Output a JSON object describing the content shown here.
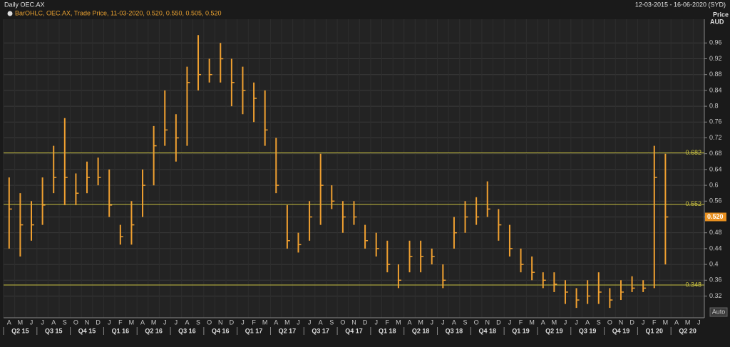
{
  "chart_data": {
    "type": "ohlc",
    "title": "Daily OEC.AX",
    "date_range": "12-03-2015 - 16-06-2020 (SYD)",
    "legend_text": "BarOHLC, OEC.AX, Trade Price, 11-03-2020, 0.520, 0.550, 0.505, 0.520",
    "y_axis_title": [
      "Price",
      "AUD"
    ],
    "button": "Auto",
    "color": "#f0a030",
    "categories": [
      "A",
      "M",
      "J",
      "J",
      "A",
      "S",
      "O",
      "N",
      "D",
      "J",
      "F",
      "M",
      "A",
      "M",
      "J",
      "J",
      "A",
      "S",
      "O",
      "N",
      "D",
      "J",
      "F",
      "M",
      "A",
      "M",
      "J",
      "J",
      "A",
      "S",
      "O",
      "N",
      "D",
      "J",
      "F",
      "M",
      "A",
      "M",
      "J",
      "J",
      "A",
      "S",
      "O",
      "N",
      "D",
      "J",
      "F",
      "M",
      "A",
      "M",
      "J",
      "J",
      "A",
      "S",
      "O",
      "N",
      "D",
      "J",
      "F",
      "M",
      "A",
      "M",
      "J"
    ],
    "quarters": [
      "Q2 15",
      "Q3 15",
      "Q4 15",
      "Q1 16",
      "Q2 16",
      "Q3 16",
      "Q4 16",
      "Q1 17",
      "Q2 17",
      "Q3 17",
      "Q4 17",
      "Q1 18",
      "Q2 18",
      "Q3 18",
      "Q4 18",
      "Q1 19",
      "Q2 19",
      "Q3 19",
      "Q4 19",
      "Q1 20",
      "Q2 20"
    ],
    "high": [
      0.62,
      0.58,
      0.56,
      0.62,
      0.7,
      0.77,
      0.63,
      0.66,
      0.67,
      0.64,
      0.5,
      0.56,
      0.64,
      0.75,
      0.84,
      0.78,
      0.9,
      0.98,
      0.92,
      0.96,
      0.92,
      0.9,
      0.86,
      0.84,
      0.72,
      0.55,
      0.48,
      0.56,
      0.68,
      0.6,
      0.56,
      0.56,
      0.5,
      0.48,
      0.46,
      0.4,
      0.46,
      0.46,
      0.44,
      0.4,
      0.52,
      0.56,
      0.57,
      0.61,
      0.54,
      0.5,
      0.44,
      0.42,
      0.38,
      0.38,
      0.36,
      0.34,
      0.36,
      0.38,
      0.34,
      0.36,
      0.37,
      0.36,
      0.7,
      0.68,
      null,
      null,
      null
    ],
    "low": [
      0.44,
      0.42,
      0.46,
      0.5,
      0.58,
      0.55,
      0.55,
      0.58,
      0.6,
      0.52,
      0.45,
      0.45,
      0.52,
      0.6,
      0.7,
      0.66,
      0.7,
      0.84,
      0.86,
      0.86,
      0.8,
      0.78,
      0.76,
      0.7,
      0.58,
      0.44,
      0.43,
      0.46,
      0.5,
      0.54,
      0.48,
      0.5,
      0.44,
      0.42,
      0.38,
      0.34,
      0.38,
      0.38,
      0.4,
      0.34,
      0.44,
      0.48,
      0.5,
      0.52,
      0.46,
      0.42,
      0.38,
      0.36,
      0.34,
      0.33,
      0.3,
      0.29,
      0.3,
      0.3,
      0.29,
      0.31,
      0.33,
      0.33,
      0.34,
      0.4,
      null,
      null,
      null
    ],
    "close": [
      0.54,
      0.5,
      0.5,
      0.55,
      0.62,
      0.62,
      0.58,
      0.62,
      0.62,
      0.55,
      0.47,
      0.5,
      0.6,
      0.7,
      0.74,
      0.72,
      0.86,
      0.88,
      0.88,
      0.92,
      0.86,
      0.84,
      0.82,
      0.74,
      0.6,
      0.46,
      0.45,
      0.52,
      0.6,
      0.56,
      0.52,
      0.52,
      0.46,
      0.44,
      0.4,
      0.36,
      0.42,
      0.42,
      0.42,
      0.36,
      0.48,
      0.52,
      0.52,
      0.54,
      0.5,
      0.44,
      0.4,
      0.38,
      0.36,
      0.35,
      0.33,
      0.31,
      0.32,
      0.33,
      0.31,
      0.33,
      0.34,
      0.34,
      0.62,
      0.52,
      null,
      null,
      null
    ],
    "ylim": [
      0.265,
      1.02
    ],
    "yticks": [
      0.32,
      0.36,
      0.4,
      0.44,
      0.48,
      0.52,
      0.56,
      0.6,
      0.64,
      0.68,
      0.72,
      0.76,
      0.8,
      0.84,
      0.88,
      0.92,
      0.96
    ],
    "levels": [
      0.682,
      0.552,
      0.348
    ],
    "level_color": "#c8c040",
    "last_price": {
      "value": 0.52,
      "label": "0.520"
    },
    "grid": true
  }
}
